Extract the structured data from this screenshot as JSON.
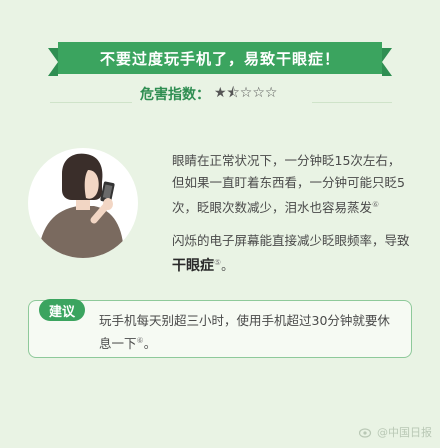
{
  "banner": {
    "title": "不要过度玩手机了，易致干眼症！"
  },
  "danger": {
    "label": "危害指数：",
    "stars": "★⯪☆☆☆"
  },
  "paragraph1": {
    "text": "眼睛在正常状况下，一分钟眨15次左右，但如果一直盯着东西看，一分钟可能只眨5次，眨眼次数减少，泪水也容易蒸发",
    "ref": "⑥"
  },
  "paragraph2": {
    "text_before": "闪烁的电子屏幕能直接减少眨眼频率，导致",
    "highlight": "干眼症",
    "ref": "⑤",
    "text_after": "。"
  },
  "advice": {
    "badge": "建议",
    "text": "玩手机每天别超三小时，使用手机超过30分钟就要休息一下",
    "ref": "⑥",
    "end": "。"
  },
  "watermark": {
    "text": "@中国日报"
  },
  "colors": {
    "background": "#e9f3e4",
    "accent": "#3ba45f"
  }
}
